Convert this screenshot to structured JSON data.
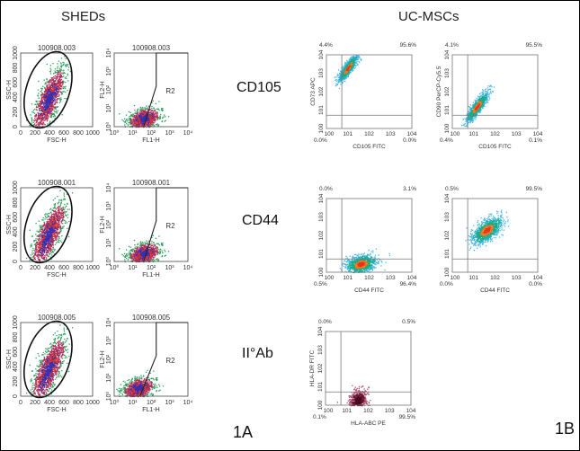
{
  "headers": {
    "left": "SHEDs",
    "right": "UC-MSCs"
  },
  "row_labels": [
    "CD105",
    "CD44",
    "II°Ab"
  ],
  "panel_labels": {
    "a": "1A",
    "b": "1B"
  },
  "panel_a": [
    {
      "sample": "100908.003",
      "scatter": {
        "xlabel": "FSC-H",
        "ylabel": "SSC-H",
        "ticks": [
          "0",
          "200",
          "400",
          "600",
          "800",
          "1000"
        ]
      },
      "fluor": {
        "xlabel": "FL1-H",
        "ylabel": "FL2-H",
        "ticks": [
          "10⁰",
          "10¹",
          "10²",
          "10³",
          "10⁴"
        ],
        "gate": "R2"
      }
    },
    {
      "sample": "100908.001",
      "scatter": {
        "xlabel": "FSC-H",
        "ylabel": "SSC-H",
        "ticks": [
          "0",
          "200",
          "400",
          "600",
          "800",
          "1000"
        ]
      },
      "fluor": {
        "xlabel": "FL1-H",
        "ylabel": "FL2-H",
        "ticks": [
          "10⁰",
          "10¹",
          "10²",
          "10³",
          "10⁴"
        ],
        "gate": "R2"
      }
    },
    {
      "sample": "100908.005",
      "scatter": {
        "xlabel": "FSC-H",
        "ylabel": "SSC-H",
        "ticks": [
          "0",
          "200",
          "400",
          "600",
          "800",
          "1000"
        ]
      },
      "fluor": {
        "xlabel": "FL1-H",
        "ylabel": "FL2-H",
        "ticks": [
          "10⁰",
          "10¹",
          "10²",
          "10³",
          "10⁴"
        ],
        "gate": "R2"
      }
    }
  ],
  "panel_b": [
    {
      "xlabel": "CD105 FITC",
      "ylabel": "CD73 APC",
      "quadrants": {
        "ul": "4.4%",
        "ur": "95.6%",
        "ll": "0.0%",
        "lr": "0.0%"
      },
      "palette": "rainbow"
    },
    {
      "xlabel": "CD105 FITC",
      "ylabel": "CD90 PerCP-Cy5.5",
      "quadrants": {
        "ul": "4.1%",
        "ur": "95.5%",
        "ll": "0.4%",
        "lr": "0.1%"
      },
      "palette": "rainbow"
    },
    {
      "xlabel": "CD44 FITC",
      "ylabel": "",
      "quadrants": {
        "ul": "0.0%",
        "ur": "3.1%",
        "ll": "0.5%",
        "lr": "96.4%"
      },
      "palette": "rainbow"
    },
    {
      "xlabel": "CD44 FITC",
      "ylabel": "",
      "quadrants": {
        "ul": "0.5%",
        "ur": "99.5%",
        "ll": "0.0%",
        "lr": "0.0%"
      },
      "palette": "rainbow"
    },
    {
      "xlabel": "HLA-ABC PE",
      "ylabel": "HLA-DR FITC",
      "quadrants": {
        "ul": "0.0%",
        "ur": "0.5%",
        "ll": "0.1%",
        "lr": "99.5%"
      },
      "palette": "darkred"
    }
  ],
  "b_ticks": [
    "100",
    "101",
    "102",
    "103",
    "104"
  ],
  "colors": {
    "high": "#e8321e",
    "mid": "#3a2fb0",
    "low": "#2aa05a",
    "cyan": "#4fb8e8",
    "teal": "#1aa88a",
    "orange": "#f07a1a",
    "darkred": "#6a1030"
  }
}
